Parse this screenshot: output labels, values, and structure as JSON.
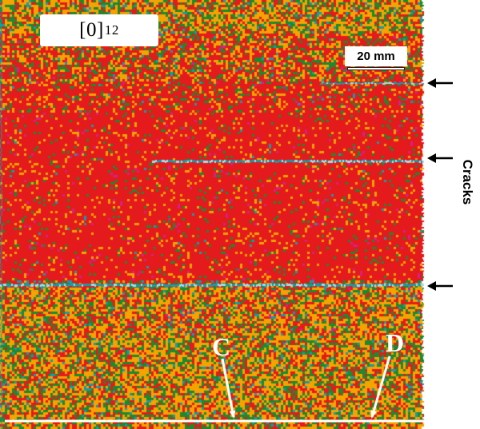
{
  "figure": {
    "specimen_label": {
      "main": "[0]",
      "subscript": "12"
    },
    "scale_bar_label": "20 mm",
    "cracks_label": "Cracks",
    "point_c_label": "C",
    "point_d_label": "D",
    "colors": {
      "red": "#e41a1c",
      "orange": "#f5a300",
      "green": "#1c8a2e",
      "teal": "#1a9aa8",
      "light_blue": "#9fe0ea",
      "magenta": "#d6208a",
      "white": "#ffffff"
    }
  }
}
